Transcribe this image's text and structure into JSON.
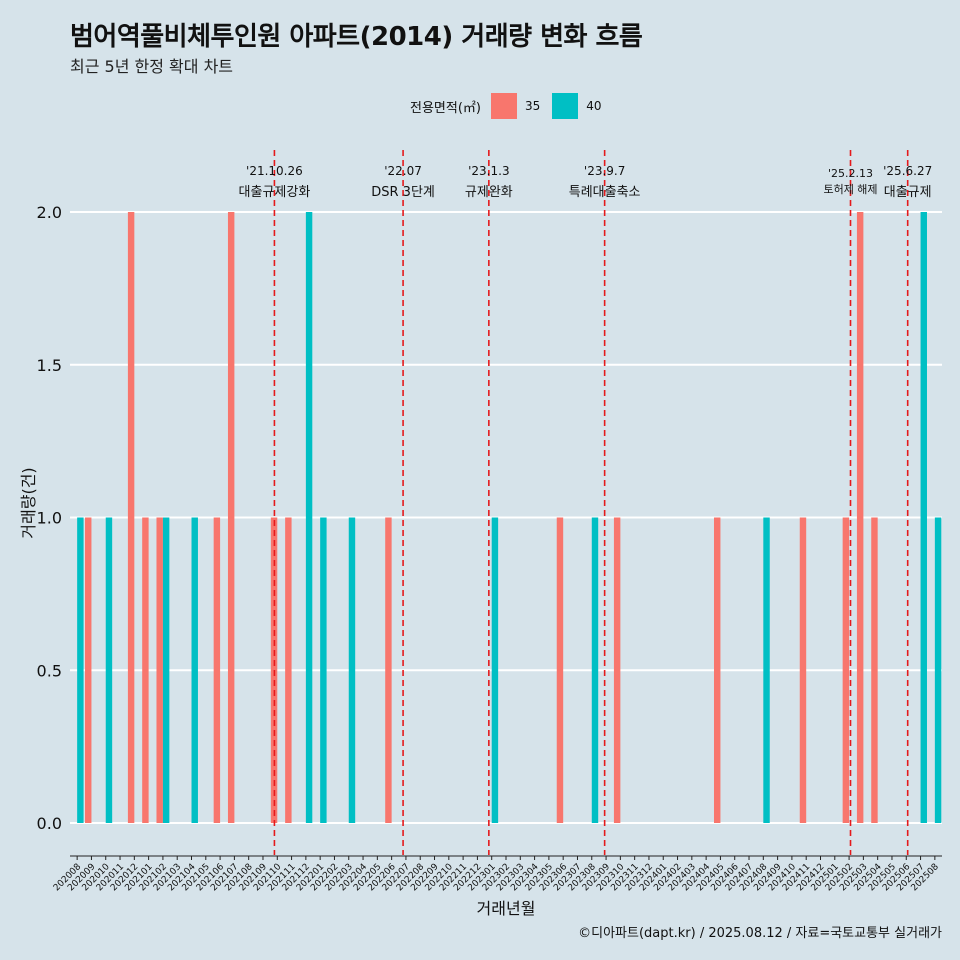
{
  "title": "범어역풀비체투인원 아파트(2014) 거래량 변화 흐름",
  "subtitle": "최근 5년 한정 확대 차트",
  "caption": "©디아파트(dapt.kr) / 2025.08.12 / 자료=국토교통부 실거래가",
  "colors": {
    "background": "#d6e3ea",
    "s35": "#f8766d",
    "s40": "#00bfc4",
    "event_line": "#e41a1c",
    "grid": "#ffffff"
  },
  "legend": {
    "title": "전용면적(㎡)",
    "items": [
      {
        "label": "35",
        "color": "#f8766d"
      },
      {
        "label": "40",
        "color": "#00bfc4"
      }
    ]
  },
  "chart_data": {
    "type": "bar",
    "title": "범어역풀비체투인원 아파트(2014) 거래량 변화 흐름",
    "xlabel": "거래년월",
    "ylabel": "거래량(건)",
    "ylim": [
      0,
      2
    ],
    "yticks": [
      "0.0",
      "0.5",
      "1.0",
      "1.5",
      "2.0"
    ],
    "categories": [
      "202008",
      "202009",
      "202010",
      "202011",
      "202012",
      "202101",
      "202102",
      "202103",
      "202104",
      "202105",
      "202106",
      "202107",
      "202108",
      "202109",
      "202110",
      "202111",
      "202112",
      "202201",
      "202202",
      "202203",
      "202204",
      "202205",
      "202206",
      "202207",
      "202208",
      "202209",
      "202210",
      "202211",
      "202212",
      "202301",
      "202302",
      "202303",
      "202304",
      "202305",
      "202306",
      "202307",
      "202308",
      "202309",
      "202310",
      "202311",
      "202312",
      "202401",
      "202402",
      "202403",
      "202404",
      "202405",
      "202406",
      "202407",
      "202408",
      "202409",
      "202410",
      "202411",
      "202412",
      "202501",
      "202502",
      "202503",
      "202504",
      "202505",
      "202506",
      "202507",
      "202508"
    ],
    "series": [
      {
        "name": "35",
        "values": [
          0,
          1,
          0,
          0,
          2,
          1,
          1,
          0,
          0,
          0,
          1,
          2,
          0,
          0,
          1,
          1,
          0,
          0,
          0,
          0,
          0,
          0,
          1,
          0,
          0,
          0,
          0,
          0,
          0,
          0,
          0,
          0,
          0,
          0,
          1,
          0,
          0,
          0,
          1,
          0,
          0,
          0,
          0,
          0,
          0,
          1,
          0,
          0,
          0,
          0,
          0,
          1,
          0,
          0,
          1,
          2,
          1,
          0,
          0,
          0,
          0
        ]
      },
      {
        "name": "40",
        "values": [
          1,
          0,
          1,
          0,
          0,
          0,
          1,
          0,
          1,
          0,
          0,
          0,
          0,
          0,
          0,
          0,
          2,
          1,
          0,
          1,
          0,
          0,
          0,
          0,
          0,
          0,
          0,
          0,
          0,
          1,
          0,
          0,
          0,
          0,
          0,
          0,
          1,
          0,
          0,
          0,
          0,
          0,
          0,
          0,
          0,
          0,
          0,
          0,
          1,
          0,
          0,
          0,
          0,
          0,
          0,
          0,
          0,
          0,
          0,
          2,
          1
        ]
      }
    ],
    "events": [
      {
        "date": "'21.10.26",
        "label": "대출규제강화",
        "x": 14.3
      },
      {
        "date": "'22.07",
        "label": "DSR 3단계",
        "x": 23.3
      },
      {
        "date": "'23.1.3",
        "label": "규제완화",
        "x": 29.3
      },
      {
        "date": "'23.9.7",
        "label": "특례대출축소",
        "x": 37.4
      },
      {
        "date": "'25.2.13",
        "label": "토허제 해제",
        "x": 54.6
      },
      {
        "date": "'25.6.27",
        "label": "대출규제",
        "x": 58.6
      }
    ],
    "grid": true,
    "legend_position": "top"
  }
}
